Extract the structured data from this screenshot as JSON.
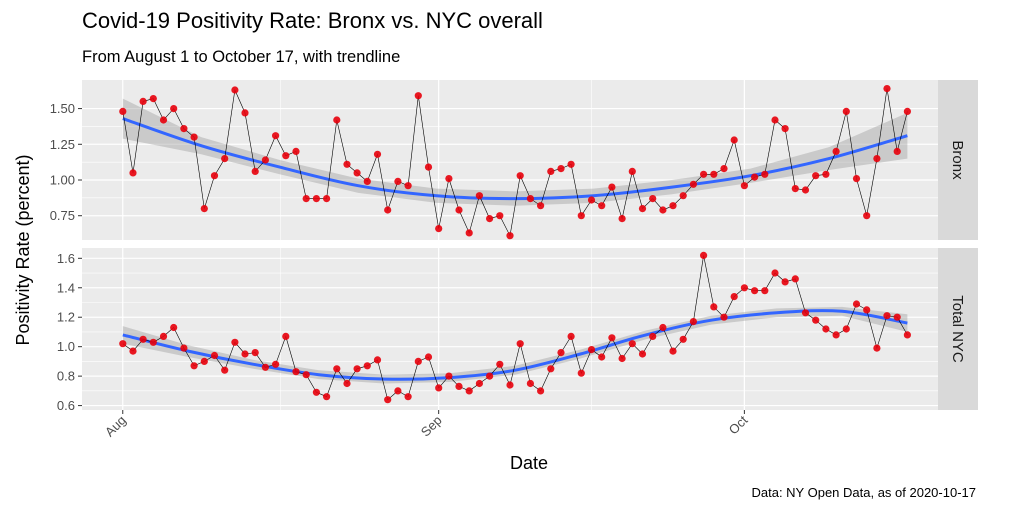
{
  "chart_data": {
    "type": "scatter",
    "title": "Covid-19 Positivity Rate: Bronx  vs. NYC overall",
    "subtitle": "From August 1 to October 17, with trendline",
    "xlabel": "Date",
    "ylabel": "Positivity Rate (percent)",
    "caption": "Data: NY Open Data, as of 2020-10-17",
    "x_ticks": [
      {
        "label": "Aug",
        "date": "2020-08-01"
      },
      {
        "label": "Sep",
        "date": "2020-09-01"
      },
      {
        "label": "Oct",
        "date": "2020-10-01"
      }
    ],
    "x_range": [
      "2020-07-28",
      "2020-10-20"
    ],
    "colors": {
      "point": "#e8000b",
      "line": "#000000",
      "trend": "#3366ff",
      "ribbon": "#999999",
      "panel": "#ebebeb",
      "strip": "#d9d9d9",
      "grid": "#ffffff"
    },
    "panels": [
      {
        "name": "Bronx",
        "ylim": [
          0.58,
          1.7
        ],
        "y_ticks": [
          "0.75",
          "1.00",
          "1.25",
          "1.50"
        ],
        "start_date": "2020-08-01",
        "values": [
          1.48,
          1.05,
          1.55,
          1.57,
          1.42,
          1.5,
          1.36,
          1.3,
          0.8,
          1.03,
          1.15,
          1.63,
          1.47,
          1.06,
          1.14,
          1.31,
          1.17,
          1.2,
          0.87,
          0.87,
          0.87,
          1.42,
          1.11,
          1.05,
          0.99,
          1.18,
          0.79,
          0.99,
          0.96,
          1.59,
          1.09,
          0.66,
          1.01,
          0.79,
          0.63,
          0.89,
          0.73,
          0.75,
          0.61,
          1.03,
          0.87,
          0.82,
          1.06,
          1.08,
          1.11,
          0.75,
          0.86,
          0.82,
          0.95,
          0.73,
          1.06,
          0.8,
          0.87,
          0.79,
          0.82,
          0.89,
          0.97,
          1.04,
          1.04,
          1.08,
          1.28,
          0.96,
          1.02,
          1.04,
          1.42,
          1.36,
          0.94,
          0.93,
          1.03,
          1.04,
          1.2,
          1.48,
          1.01,
          0.75,
          1.15,
          1.64,
          1.2,
          1.48
        ],
        "trend": [
          1.43,
          1.24,
          1.09,
          0.96,
          0.89,
          0.87,
          0.89,
          0.95,
          1.03,
          1.15,
          1.31
        ],
        "ribbon_halfwidth": [
          0.14,
          0.06,
          0.05,
          0.05,
          0.05,
          0.05,
          0.05,
          0.05,
          0.05,
          0.08,
          0.16
        ]
      },
      {
        "name": "Total NYC",
        "ylim": [
          0.57,
          1.67
        ],
        "y_ticks": [
          "0.6",
          "0.8",
          "1.0",
          "1.2",
          "1.4",
          "1.6"
        ],
        "start_date": "2020-08-01",
        "values": [
          1.02,
          0.97,
          1.05,
          1.03,
          1.07,
          1.13,
          0.99,
          0.87,
          0.9,
          0.94,
          0.84,
          1.03,
          0.95,
          0.96,
          0.86,
          0.88,
          1.07,
          0.83,
          0.81,
          0.69,
          0.66,
          0.85,
          0.75,
          0.85,
          0.87,
          0.91,
          0.64,
          0.7,
          0.66,
          0.9,
          0.93,
          0.72,
          0.8,
          0.73,
          0.7,
          0.75,
          0.8,
          0.88,
          0.74,
          1.02,
          0.75,
          0.7,
          0.85,
          0.96,
          1.07,
          0.82,
          0.98,
          0.93,
          1.06,
          0.92,
          1.02,
          0.95,
          1.07,
          1.13,
          0.97,
          1.05,
          1.17,
          1.62,
          1.27,
          1.2,
          1.34,
          1.4,
          1.38,
          1.38,
          1.5,
          1.44,
          1.46,
          1.23,
          1.18,
          1.12,
          1.08,
          1.12,
          1.29,
          1.25,
          0.99,
          1.21,
          1.2,
          1.08
        ],
        "trend": [
          1.08,
          0.97,
          0.88,
          0.81,
          0.78,
          0.79,
          0.84,
          0.95,
          1.08,
          1.18,
          1.23,
          1.24,
          1.16
        ],
        "ribbon_halfwidth": [
          0.06,
          0.04,
          0.03,
          0.03,
          0.03,
          0.03,
          0.03,
          0.03,
          0.03,
          0.03,
          0.03,
          0.03,
          0.06
        ]
      }
    ]
  }
}
